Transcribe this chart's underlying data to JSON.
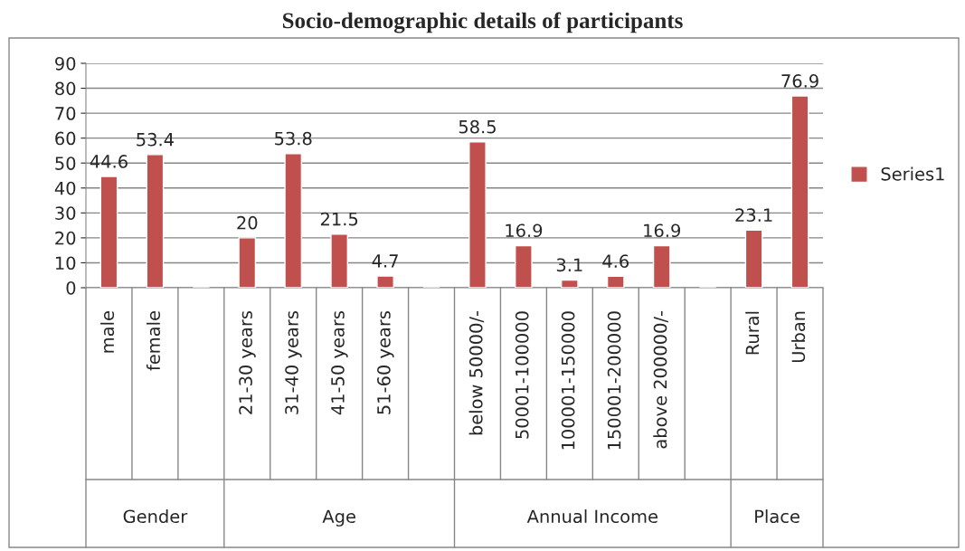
{
  "chart_data": {
    "type": "bar",
    "title": "Socio-demographic details of participants",
    "categories": [
      "male",
      "female",
      null,
      "21-30 years",
      "31-40 years",
      "41-50 years",
      "51-60 years",
      null,
      "below 50000/-",
      "50001-100000",
      "100001-150000",
      "150001-200000",
      "above 200000/-",
      null,
      "Rural",
      "Urban"
    ],
    "series": [
      {
        "name": "Series1",
        "color": "#c0504d",
        "values": [
          44.6,
          53.4,
          null,
          20,
          53.8,
          21.5,
          4.7,
          null,
          58.5,
          16.9,
          3.1,
          4.6,
          16.9,
          null,
          23.1,
          76.9
        ]
      }
    ],
    "annotations": [
      "Gender",
      "Age",
      "Annual Income",
      "Place"
    ],
    "ylim": [
      0,
      90
    ],
    "yticks": [
      0,
      10,
      20,
      30,
      40,
      50,
      60,
      70,
      80,
      90
    ],
    "grid": "y",
    "legend": "right",
    "data_labels": true
  }
}
